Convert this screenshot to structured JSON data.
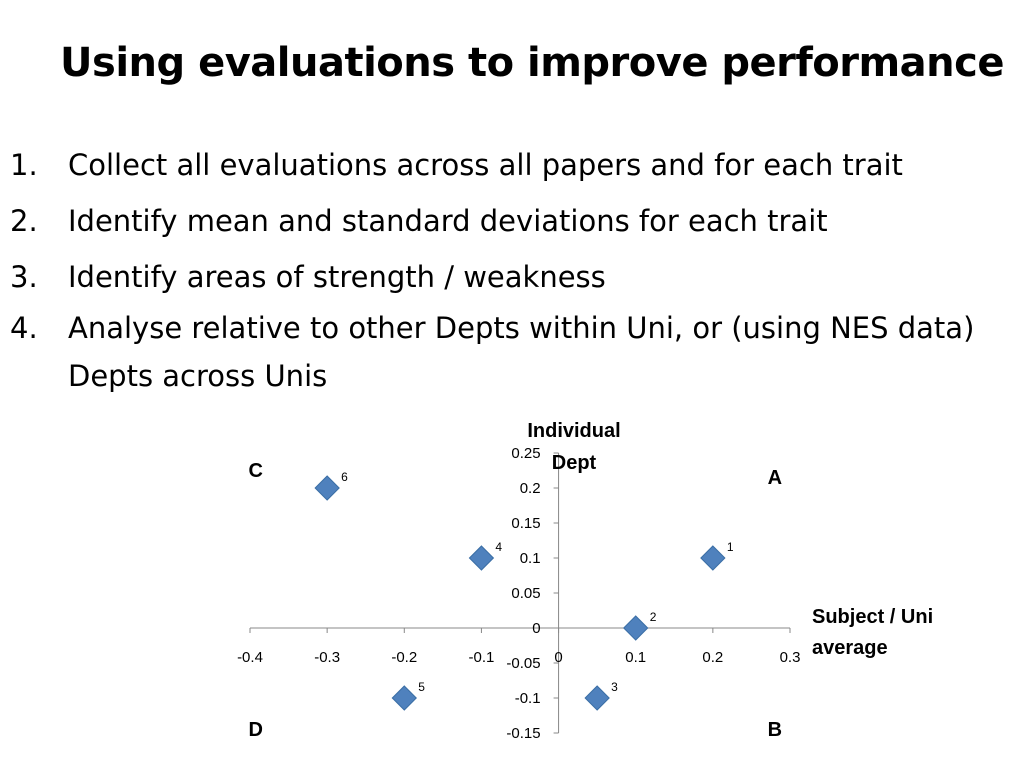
{
  "slide": {
    "title": "Using evaluations to improve performance",
    "bullets": [
      {
        "num": "1.",
        "text": "Collect all evaluations across all papers and for each trait"
      },
      {
        "num": "2.",
        "text": "Identify mean and standard deviations for each trait"
      },
      {
        "num": "3.",
        "text": "Identify areas of strength / weakness"
      },
      {
        "num": "4.",
        "text": "Analyse relative to other Depts within Uni, or (using NES data) Depts across Unis"
      }
    ]
  },
  "chart_data": {
    "type": "scatter",
    "xlabel": "Subject / Uni average",
    "ylabel": "Individual Dept",
    "xlim": [
      -0.4,
      0.3
    ],
    "ylim": [
      -0.15,
      0.25
    ],
    "xticks": [
      -0.4,
      -0.3,
      -0.2,
      -0.1,
      0,
      0.1,
      0.2,
      0.3
    ],
    "xtick_labels": [
      "-0.4",
      "-0.3",
      "-0.2",
      "-0.1",
      "0",
      "0.1",
      "0.2",
      "0.3"
    ],
    "yticks": [
      -0.15,
      -0.1,
      -0.05,
      0,
      0.05,
      0.1,
      0.15,
      0.2,
      0.25
    ],
    "ytick_labels": [
      "-0.15",
      "-0.1",
      "-0.05",
      "0",
      "0.05",
      "0.1",
      "0.15",
      "0.2",
      "0.25"
    ],
    "marker": "diamond",
    "marker_color": "#4f81bd",
    "points": [
      {
        "label": "1",
        "x": 0.2,
        "y": 0.1
      },
      {
        "label": "2",
        "x": 0.1,
        "y": 0.0
      },
      {
        "label": "3",
        "x": 0.05,
        "y": -0.1
      },
      {
        "label": "4",
        "x": -0.1,
        "y": 0.1
      },
      {
        "label": "5",
        "x": -0.2,
        "y": -0.1
      },
      {
        "label": "6",
        "x": -0.3,
        "y": 0.2
      }
    ],
    "quadrant_labels": [
      {
        "text": "A",
        "x": 0.27,
        "y": 0.22
      },
      {
        "text": "B",
        "x": 0.27,
        "y": -0.14
      },
      {
        "text": "C",
        "x": -0.39,
        "y": 0.23
      },
      {
        "text": "D",
        "x": -0.39,
        "y": -0.14
      }
    ],
    "grid": false
  }
}
